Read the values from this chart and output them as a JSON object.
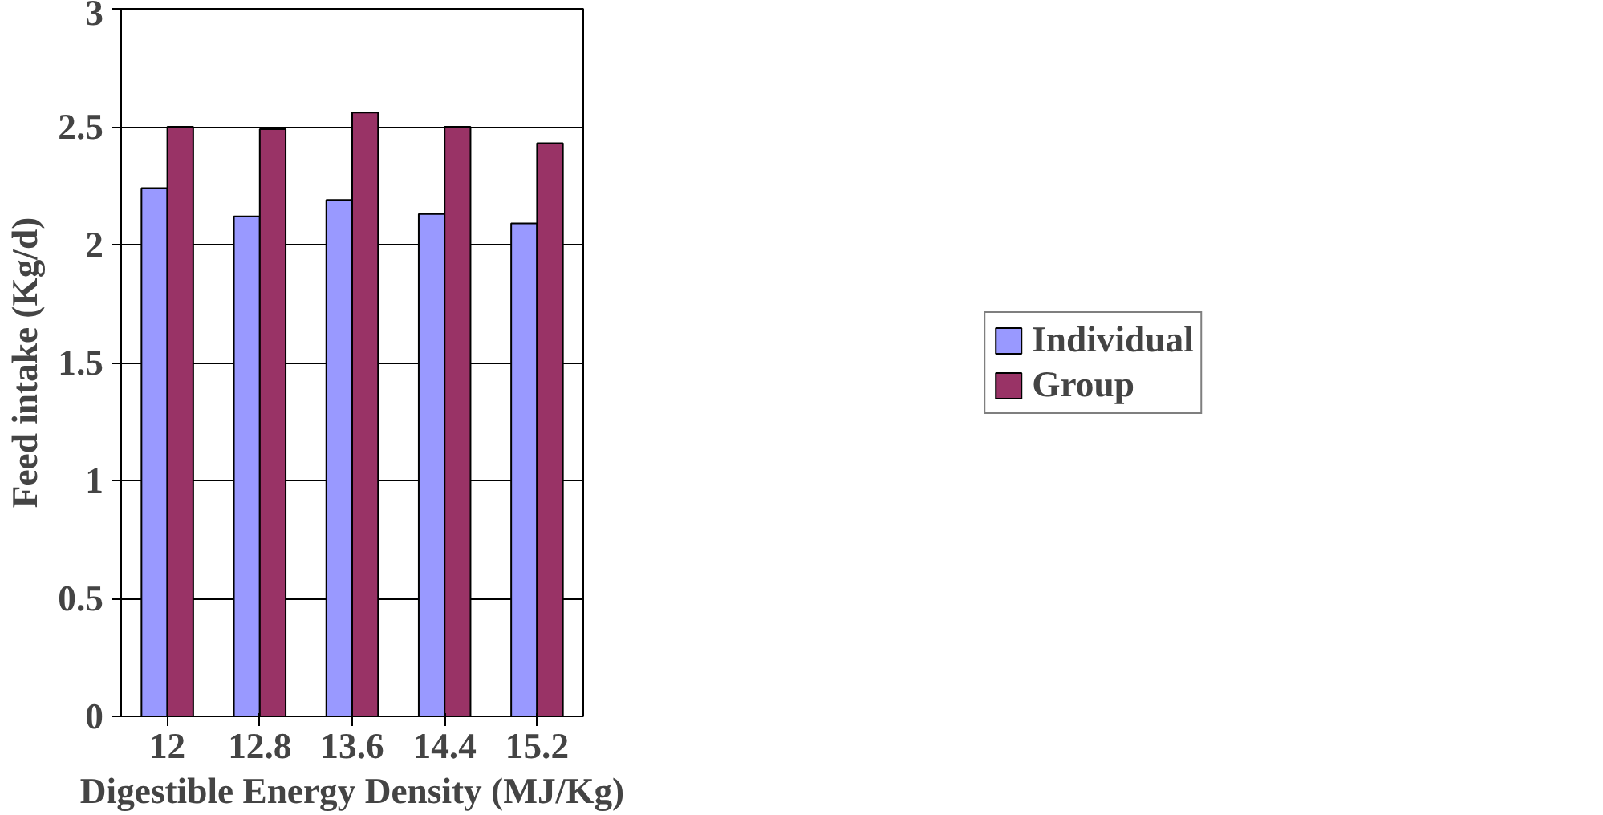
{
  "chart_data": {
    "type": "bar",
    "xlabel": "Digestible Energy Density (MJ/Kg)",
    "ylabel": "Feed intake (Kg/d)",
    "categories": [
      "12",
      "12.8",
      "13.6",
      "14.4",
      "15.2"
    ],
    "series": [
      {
        "name": "Individual",
        "color": "#9999ff",
        "values": [
          2.24,
          2.12,
          2.19,
          2.13,
          2.09
        ]
      },
      {
        "name": "Group",
        "color": "#993366",
        "values": [
          2.5,
          2.49,
          2.56,
          2.5,
          2.43
        ]
      }
    ],
    "ylim": [
      0,
      3
    ],
    "yticks": [
      0,
      0.5,
      1,
      1.5,
      2,
      2.5,
      3
    ],
    "grid": "y",
    "legend": "right"
  }
}
